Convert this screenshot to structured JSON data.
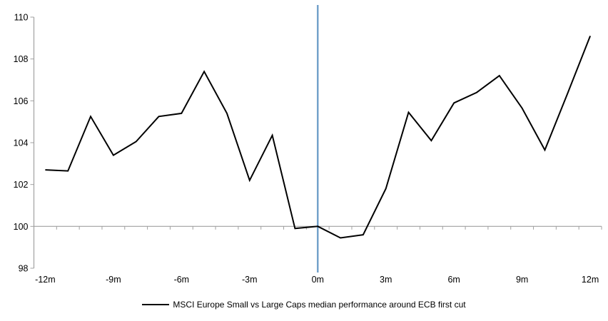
{
  "chart_data": {
    "type": "line",
    "title": "",
    "xlabel": "",
    "ylabel": "",
    "months": [
      -12,
      -11,
      -10,
      -9,
      -8,
      -7,
      -6,
      -5,
      -4,
      -3,
      -2,
      -1,
      0,
      1,
      2,
      3,
      4,
      5,
      6,
      7,
      8,
      9,
      10,
      11,
      12
    ],
    "series": [
      {
        "name": "MSCI Europe Small vs Large Caps median performance around ECB first cut",
        "color": "#000000",
        "values": [
          102.7,
          102.65,
          105.25,
          103.4,
          104.05,
          105.25,
          105.4,
          107.4,
          105.4,
          102.2,
          104.35,
          99.9,
          100.0,
          99.45,
          99.6,
          101.8,
          105.45,
          104.1,
          105.9,
          106.4,
          107.2,
          105.65,
          103.65,
          106.35,
          109.1
        ]
      }
    ],
    "ylim": [
      98,
      110
    ],
    "y_ticks": [
      98,
      100,
      102,
      104,
      106,
      108,
      110
    ],
    "x_ticks": [
      {
        "month": -12,
        "label": "-12m"
      },
      {
        "month": -9,
        "label": "-9m"
      },
      {
        "month": -6,
        "label": "-6m"
      },
      {
        "month": -3,
        "label": "-3m"
      },
      {
        "month": 0,
        "label": "0m"
      },
      {
        "month": 3,
        "label": "3m"
      },
      {
        "month": 6,
        "label": "6m"
      },
      {
        "month": 9,
        "label": "9m"
      },
      {
        "month": 12,
        "label": "12m"
      }
    ],
    "x_axis_cross_value": 100,
    "event_line": {
      "x_month": 0,
      "color": "#74A2CB"
    },
    "axis_color": "#A0A0A0",
    "grid": false,
    "legend_position": "bottom-center"
  }
}
